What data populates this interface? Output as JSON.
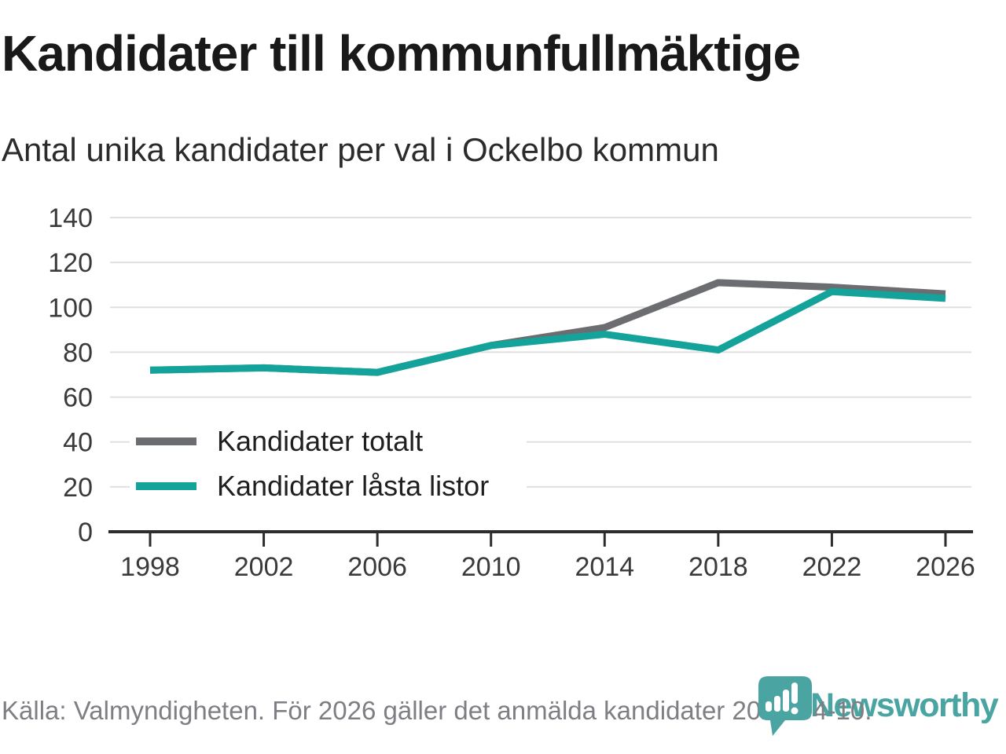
{
  "header": {
    "title": "Kandidater till kommunfullmäktige",
    "subtitle": "Antal unika kandidater per val i Ockelbo kommun"
  },
  "chart_data": {
    "type": "line",
    "x": [
      1998,
      2002,
      2006,
      2010,
      2014,
      2018,
      2022,
      2026
    ],
    "series": [
      {
        "name": "Kandidater totalt",
        "color": "#6b6d70",
        "values": [
          72,
          73,
          71,
          83,
          91,
          111,
          109,
          106
        ]
      },
      {
        "name": "Kandidater låsta listor",
        "color": "#14a39a",
        "values": [
          72,
          73,
          71,
          83,
          88,
          81,
          107,
          104
        ]
      }
    ],
    "ylim": [
      0,
      140
    ],
    "yticks": [
      0,
      20,
      40,
      60,
      80,
      100,
      120,
      140
    ],
    "grid": "horizontal",
    "legend_position": "inside-bottom-left",
    "line_width": 9
  },
  "footer": {
    "source": "Källa: Valmyndigheten. För 2026 gäller det anmälda kandidater 2026-04-10."
  },
  "branding": {
    "logo_text": "Newsworthy",
    "logo_color": "#4aa5a2",
    "logo_icon": "newsworthy-pin-barchart-icon"
  },
  "colors": {
    "title": "#191919",
    "subtitle": "#2b2b2b",
    "axis_text": "#3a3a3a",
    "axis_line": "#2d2d2d",
    "gridline": "#e0e0e0",
    "source_text": "#7e7e84",
    "background": "#ffffff"
  }
}
